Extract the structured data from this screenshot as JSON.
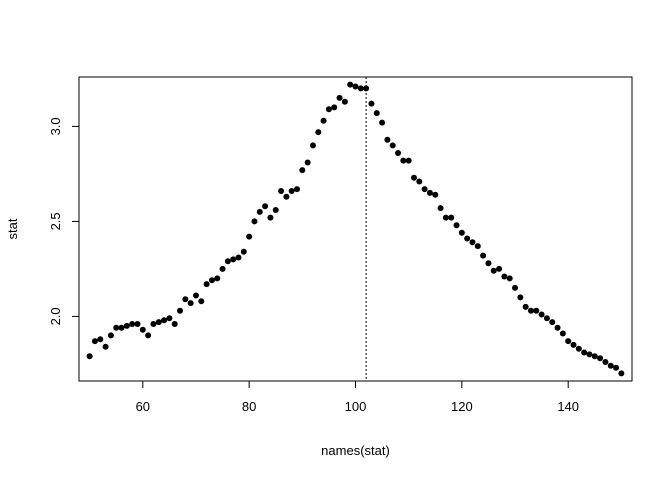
{
  "chart_data": {
    "type": "scatter",
    "title": "",
    "xlabel": "names(stat)",
    "ylabel": "stat",
    "xlim": [
      48,
      152
    ],
    "ylim": [
      1.66,
      3.26
    ],
    "x_ticks": [
      60,
      80,
      100,
      120,
      140
    ],
    "y_ticks": [
      2.0,
      2.5,
      3.0
    ],
    "x_tick_labels": [
      "60",
      "80",
      "100",
      "120",
      "140"
    ],
    "y_tick_labels": [
      "2.0",
      "2.5",
      "3.0"
    ],
    "grid": false,
    "legend": "none",
    "colors": {
      "points": "#000000",
      "axes": "#000000",
      "background": "#ffffff"
    },
    "vline": {
      "x": 102,
      "style": "dotted"
    },
    "series": [
      {
        "x": [
          50,
          51,
          52,
          53,
          54,
          55,
          56,
          57,
          58,
          59,
          60,
          61,
          62,
          63,
          64,
          65,
          66,
          67,
          68,
          69,
          70,
          71,
          72,
          73,
          74,
          75,
          76,
          77,
          78,
          79,
          80,
          81,
          82,
          83,
          84,
          85,
          86,
          87,
          88,
          89,
          90,
          91,
          92,
          93,
          94,
          95,
          96,
          97,
          98,
          99,
          100,
          101,
          102,
          103,
          104,
          105,
          106,
          107,
          108,
          109,
          110,
          111,
          112,
          113,
          114,
          115,
          116,
          117,
          118,
          119,
          120,
          121,
          122,
          123,
          124,
          125,
          126,
          127,
          128,
          129,
          130,
          131,
          132,
          133,
          134,
          135,
          136,
          137,
          138,
          139,
          140,
          141,
          142,
          143,
          144,
          145,
          146,
          147,
          148,
          149,
          150
        ],
        "y": [
          1.79,
          1.87,
          1.88,
          1.84,
          1.9,
          1.94,
          1.94,
          1.95,
          1.96,
          1.96,
          1.93,
          1.9,
          1.96,
          1.97,
          1.98,
          1.99,
          1.96,
          2.03,
          2.09,
          2.07,
          2.11,
          2.08,
          2.17,
          2.19,
          2.2,
          2.25,
          2.29,
          2.3,
          2.31,
          2.34,
          2.42,
          2.5,
          2.55,
          2.58,
          2.52,
          2.56,
          2.66,
          2.63,
          2.66,
          2.67,
          2.77,
          2.81,
          2.9,
          2.97,
          3.03,
          3.09,
          3.1,
          3.15,
          3.13,
          3.22,
          3.21,
          3.2,
          3.2,
          3.12,
          3.07,
          3.02,
          2.93,
          2.9,
          2.86,
          2.82,
          2.82,
          2.73,
          2.71,
          2.67,
          2.65,
          2.64,
          2.57,
          2.52,
          2.52,
          2.48,
          2.44,
          2.41,
          2.39,
          2.37,
          2.32,
          2.28,
          2.24,
          2.25,
          2.21,
          2.2,
          2.15,
          2.1,
          2.05,
          2.03,
          2.03,
          2.01,
          1.99,
          1.97,
          1.94,
          1.91,
          1.87,
          1.85,
          1.83,
          1.81,
          1.8,
          1.79,
          1.78,
          1.76,
          1.74,
          1.73,
          1.7
        ]
      }
    ]
  }
}
